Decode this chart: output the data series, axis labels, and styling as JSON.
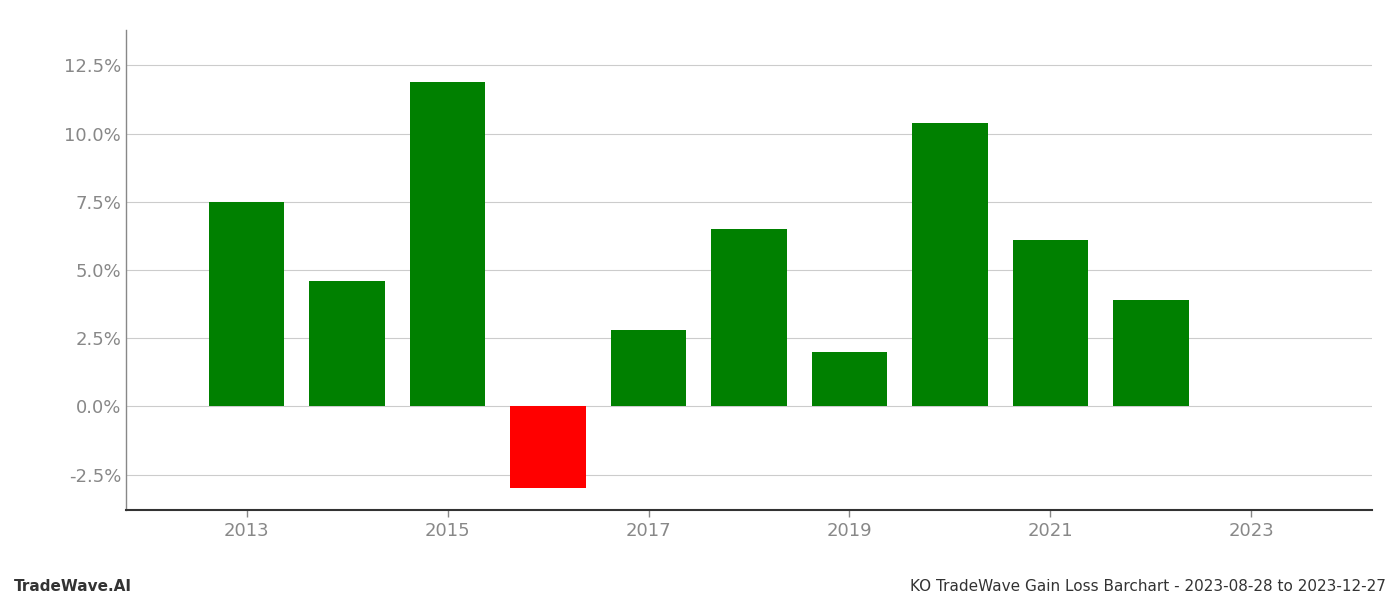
{
  "years": [
    2013,
    2014,
    2015,
    2016,
    2017,
    2018,
    2019,
    2020,
    2021,
    2022
  ],
  "values": [
    0.075,
    0.046,
    0.119,
    -0.03,
    0.028,
    0.065,
    0.02,
    0.104,
    0.061,
    0.039
  ],
  "colors": [
    "#008000",
    "#008000",
    "#008000",
    "#ff0000",
    "#008000",
    "#008000",
    "#008000",
    "#008000",
    "#008000",
    "#008000"
  ],
  "ylim": [
    -0.038,
    0.138
  ],
  "yticks": [
    -0.025,
    0.0,
    0.025,
    0.05,
    0.075,
    0.1,
    0.125
  ],
  "xticks": [
    2013,
    2015,
    2017,
    2019,
    2021,
    2023
  ],
  "xlim": [
    2011.8,
    2024.2
  ],
  "title": "KO TradeWave Gain Loss Barchart - 2023-08-28 to 2023-12-27",
  "footnote": "TradeWave.AI",
  "background_color": "#ffffff",
  "grid_color": "#cccccc",
  "bar_width": 0.75
}
